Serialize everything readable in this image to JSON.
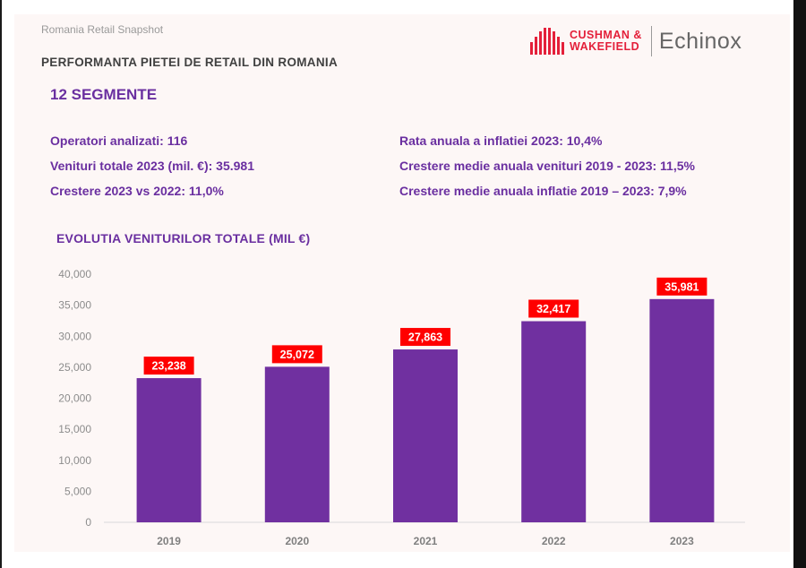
{
  "header": {
    "snapshot_label": "Romania Retail Snapshot",
    "title": "PERFORMANTA PIETEI DE RETAIL DIN ROMANIA",
    "segments": "12 SEGMENTE"
  },
  "logo": {
    "line1": "CUSHMAN &",
    "line2": "WAKEFIELD",
    "partner": "Echinox",
    "brand_color": "#e4203a"
  },
  "stats": {
    "left": [
      "Operatori analizati: 116",
      "Venituri totale 2023 (mil. €): 35.981",
      "Crestere 2023 vs 2022: 11,0%"
    ],
    "right": [
      "Rata anuala a inflatiei 2023: 10,4%",
      "Crestere medie anuala venituri 2019 - 2023: 11,5%",
      "Crestere medie anuala inflatie 2019 – 2023: 7,9%"
    ]
  },
  "chart_data": {
    "type": "bar",
    "title": "EVOLUTIA VENITURILOR TOTALE (MIL €)",
    "categories": [
      "2019",
      "2020",
      "2021",
      "2022",
      "2023"
    ],
    "values": [
      23238,
      25072,
      27863,
      32417,
      35981
    ],
    "value_labels": [
      "23,238",
      "25,072",
      "27,863",
      "32,417",
      "35,981"
    ],
    "yticks": [
      "0",
      "5,000",
      "10,000",
      "15,000",
      "20,000",
      "25,000",
      "30,000",
      "35,000",
      "40,000"
    ],
    "ylim": [
      0,
      40000
    ],
    "grid": false,
    "bar_color": "#7030a0",
    "label_bg_color": "#ff0000",
    "label_text_color": "#ffffff"
  }
}
